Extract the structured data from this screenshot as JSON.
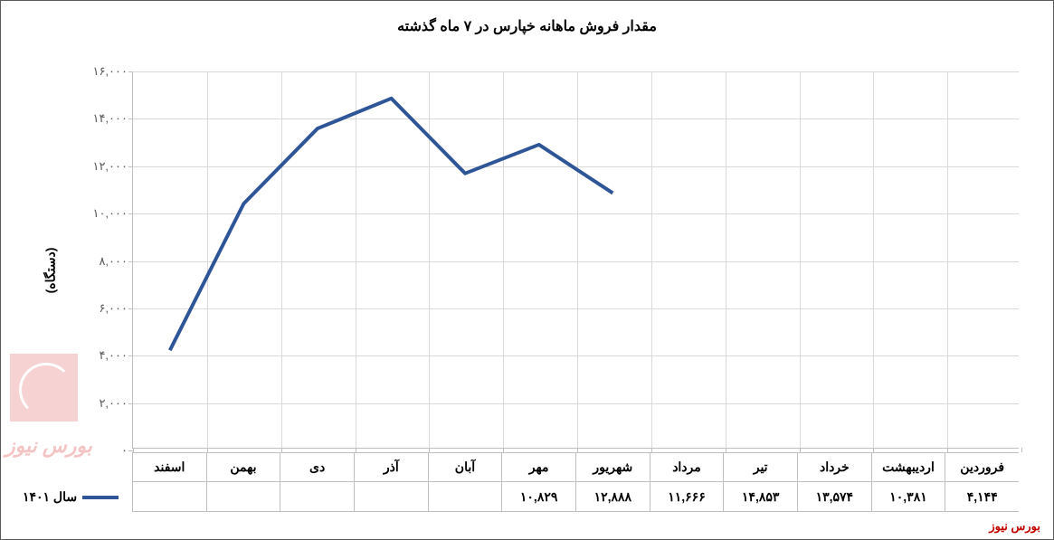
{
  "chart": {
    "type": "line",
    "title": "مقدار فروش ماهانه خپارس در ۷ ماه گذشته",
    "title_fontsize": 16,
    "ylabel": "(دستگاه)",
    "ylabel_fontsize": 14,
    "background_color": "#ffffff",
    "grid_color": "#d9d9d9",
    "axis_color": "#bfbfbf",
    "line_color": "#2e5597",
    "line_width": 4,
    "ylim": [
      0,
      16000
    ],
    "ytick_step": 2000,
    "yticks": [
      "۰",
      "۲,۰۰۰",
      "۴,۰۰۰",
      "۶,۰۰۰",
      "۸,۰۰۰",
      "۱۰,۰۰۰",
      "۱۲,۰۰۰",
      "۱۴,۰۰۰",
      "۱۶,۰۰۰"
    ],
    "categories": [
      "فروردین",
      "اردیبهشت",
      "خرداد",
      "تیر",
      "مرداد",
      "شهریور",
      "مهر",
      "آبان",
      "آذر",
      "دی",
      "بهمن",
      "اسفند"
    ],
    "series_label": "سال ۱۴۰۱",
    "values": [
      4144,
      10381,
      13574,
      14853,
      11666,
      12888,
      10829,
      null,
      null,
      null,
      null,
      null
    ],
    "value_labels": [
      "۴,۱۴۴",
      "۱۰,۳۸۱",
      "۱۳,۵۷۴",
      "۱۴,۸۵۳",
      "۱۱,۶۶۶",
      "۱۲,۸۸۸",
      "۱۰,۸۲۹",
      "",
      "",
      "",
      "",
      ""
    ]
  },
  "credit": "بورس نیوز",
  "watermark_text": "بورس نیوز"
}
